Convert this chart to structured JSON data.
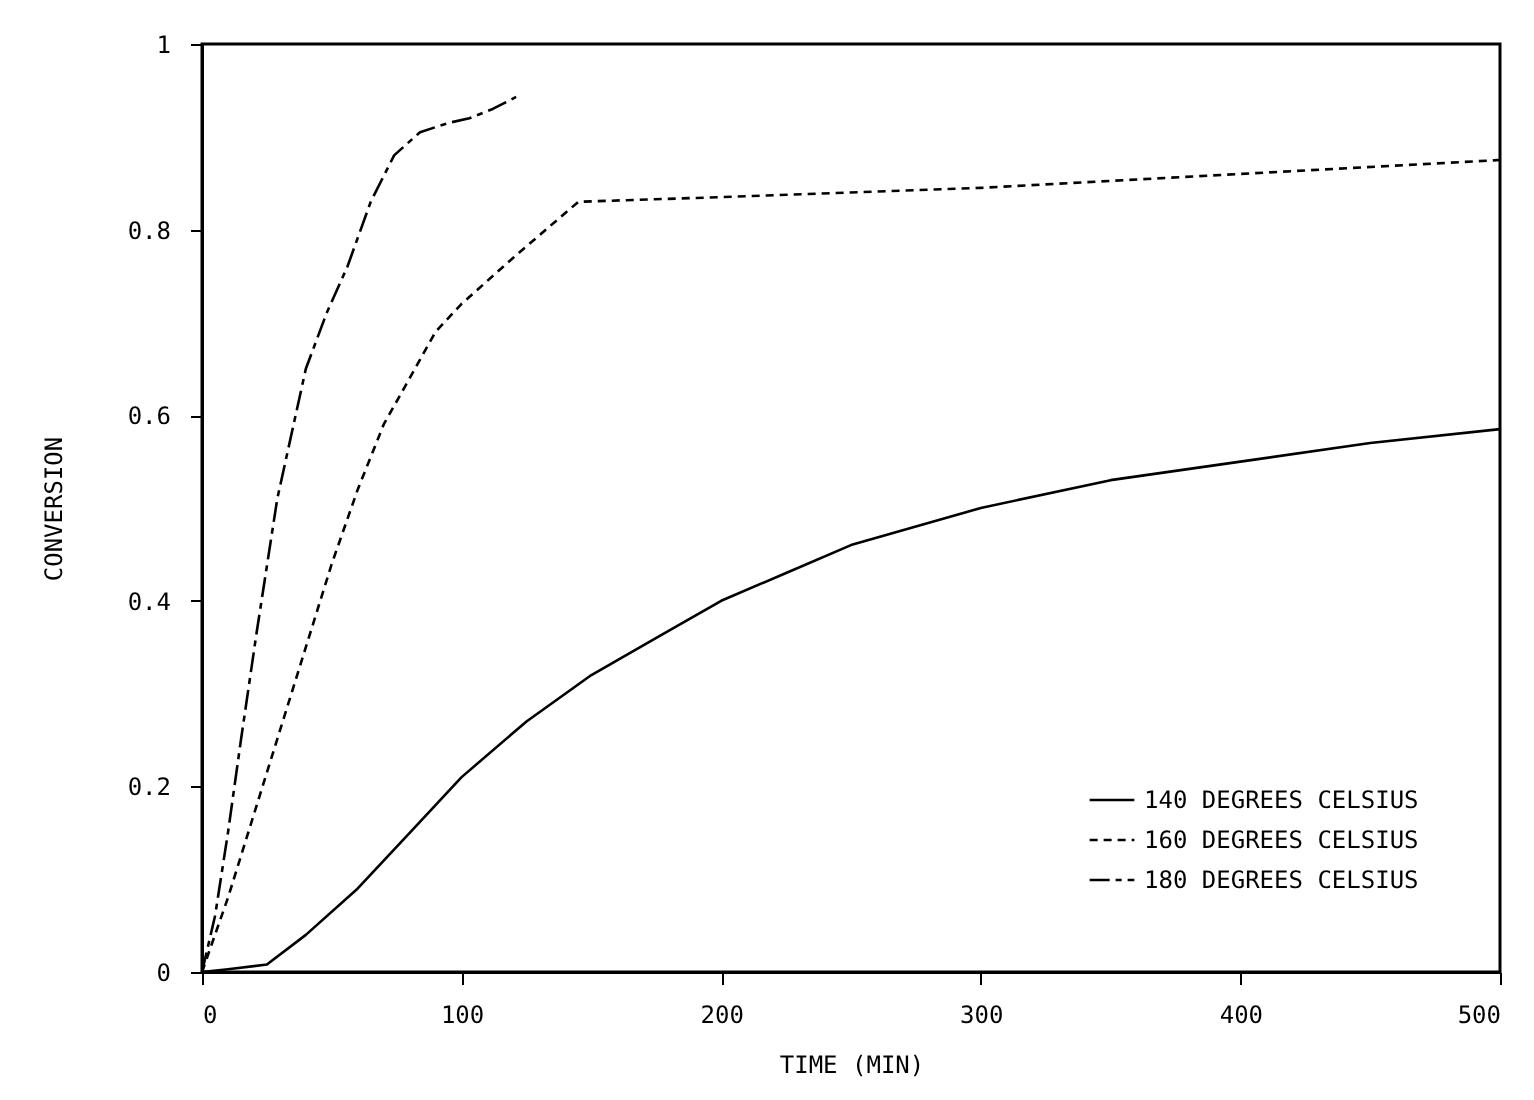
{
  "chart_data": {
    "type": "line",
    "xlabel": "TIME (MIN)",
    "ylabel": "CONVERSION",
    "xlim": [
      0,
      500
    ],
    "xticks": [
      0,
      100,
      200,
      300,
      400,
      500
    ],
    "ylim": [
      0,
      1
    ],
    "yticks": [
      0,
      0.2,
      0.4,
      0.6,
      0.8,
      1
    ],
    "grid": false,
    "legend": "bottom right",
    "marker": "none",
    "series": [
      {
        "name": "140 DEGREES CELSIUS",
        "color": "#000000",
        "line_style": "solid",
        "x": [
          0,
          10,
          25,
          40,
          60,
          80,
          100,
          125,
          150,
          175,
          200,
          225,
          250,
          275,
          300,
          350,
          400,
          450,
          500
        ],
        "values": [
          0,
          0.003,
          0.008,
          0.04,
          0.09,
          0.15,
          0.21,
          0.27,
          0.32,
          0.36,
          0.4,
          0.43,
          0.46,
          0.48,
          0.5,
          0.53,
          0.55,
          0.57,
          0.585
        ]
      },
      {
        "name": "160 DEGREES CELSIUS",
        "color": "#000000",
        "line_style": "dotted",
        "x": [
          0,
          10,
          20,
          30,
          40,
          50,
          60,
          70,
          80,
          90,
          100,
          120,
          145,
          200,
          300,
          400,
          500
        ],
        "values": [
          0,
          0.08,
          0.17,
          0.26,
          0.35,
          0.44,
          0.52,
          0.59,
          0.64,
          0.69,
          0.72,
          0.77,
          0.83,
          0.835,
          0.845,
          0.86,
          0.875
        ]
      },
      {
        "name": "180 DEGREES CELSIUS",
        "color": "#000000",
        "line_style": "dashed",
        "x": [
          0,
          5,
          10,
          15,
          21,
          29,
          40,
          48,
          56,
          65,
          74,
          84,
          95,
          103,
          112,
          121
        ],
        "values": [
          0,
          0.06,
          0.15,
          0.25,
          0.365,
          0.51,
          0.65,
          0.71,
          0.76,
          0.83,
          0.88,
          0.905,
          0.915,
          0.92,
          0.93,
          0.943
        ]
      }
    ]
  }
}
